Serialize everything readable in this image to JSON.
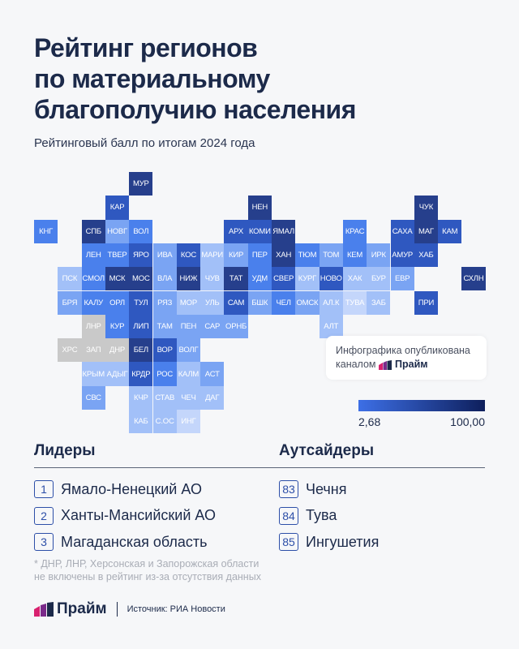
{
  "title_lines": [
    "Рейтинг регионов",
    "по материальному",
    "благополучию населения"
  ],
  "subtitle": "Рейтинговый балл по итогам 2024 года",
  "colors": {
    "levels": [
      "#c4d6fb",
      "#a2c0f8",
      "#7aa4f3",
      "#4a80ec",
      "#2f58c0",
      "#263f8c"
    ],
    "excluded": "#c9c9c9",
    "accent": "#2d4fa8"
  },
  "tiles": [
    {
      "code": "МУР",
      "level": 5
    },
    {
      "code": "КАР",
      "level": 4
    },
    {
      "code": "НЕН",
      "level": 5
    },
    {
      "code": "ЧУК",
      "level": 5
    },
    {
      "code": "КНГ",
      "level": 3
    },
    {
      "code": "СПБ",
      "level": 5
    },
    {
      "code": "НОВГ",
      "level": 2
    },
    {
      "code": "ВОЛ",
      "level": 3
    },
    {
      "code": "АРХ",
      "level": 4
    },
    {
      "code": "КОМИ",
      "level": 4
    },
    {
      "code": "ЯМАЛ",
      "level": 5
    },
    {
      "code": "КРАС",
      "level": 3
    },
    {
      "code": "САХА",
      "level": 4
    },
    {
      "code": "МАГ",
      "level": 5
    },
    {
      "code": "КАМ",
      "level": 4
    },
    {
      "code": "ЛЕН",
      "level": 3
    },
    {
      "code": "ТВЕР",
      "level": 3
    },
    {
      "code": "ЯРО",
      "level": 4
    },
    {
      "code": "ИВА",
      "level": 2
    },
    {
      "code": "КОС",
      "level": 4
    },
    {
      "code": "МАРИ",
      "level": 1
    },
    {
      "code": "КИР",
      "level": 2
    },
    {
      "code": "ПЕР",
      "level": 3
    },
    {
      "code": "ХАН",
      "level": 5
    },
    {
      "code": "ТЮМ",
      "level": 3
    },
    {
      "code": "ТОМ",
      "level": 2
    },
    {
      "code": "КЕМ",
      "level": 3
    },
    {
      "code": "ИРК",
      "level": 2
    },
    {
      "code": "АМУР",
      "level": 4
    },
    {
      "code": "ХАБ",
      "level": 4
    },
    {
      "code": "ПСК",
      "level": 1
    },
    {
      "code": "СМОЛ",
      "level": 3
    },
    {
      "code": "МСК",
      "level": 5
    },
    {
      "code": "МОС",
      "level": 5
    },
    {
      "code": "ВЛА",
      "level": 2
    },
    {
      "code": "НИЖ",
      "level": 5
    },
    {
      "code": "ЧУВ",
      "level": 1
    },
    {
      "code": "ТАТ",
      "level": 5
    },
    {
      "code": "УДМ",
      "level": 3
    },
    {
      "code": "СВЕР",
      "level": 4
    },
    {
      "code": "КУРГ",
      "level": 1
    },
    {
      "code": "НОВО",
      "level": 4
    },
    {
      "code": "ХАК",
      "level": 1
    },
    {
      "code": "БУР",
      "level": 1
    },
    {
      "code": "ЕВР",
      "level": 2
    },
    {
      "code": "СХЛН",
      "level": 5
    },
    {
      "code": "БРЯ",
      "level": 2
    },
    {
      "code": "КАЛУ",
      "level": 3
    },
    {
      "code": "ОРЛ",
      "level": 3
    },
    {
      "code": "ТУЛ",
      "level": 4
    },
    {
      "code": "РЯЗ",
      "level": 2
    },
    {
      "code": "МОР",
      "level": 1
    },
    {
      "code": "УЛЬ",
      "level": 1
    },
    {
      "code": "САМ",
      "level": 4
    },
    {
      "code": "БШК",
      "level": 2
    },
    {
      "code": "ЧЕЛ",
      "level": 3
    },
    {
      "code": "ОМСК",
      "level": 2
    },
    {
      "code": "АЛ.К",
      "level": 1
    },
    {
      "code": "ТУВА",
      "level": 0
    },
    {
      "code": "ЗАБ",
      "level": 1
    },
    {
      "code": "ПРИ",
      "level": 4
    },
    {
      "code": "ЛНР",
      "level": -1
    },
    {
      "code": "КУР",
      "level": 3
    },
    {
      "code": "ЛИП",
      "level": 4
    },
    {
      "code": "ТАМ",
      "level": 2
    },
    {
      "code": "ПЕН",
      "level": 2
    },
    {
      "code": "САР",
      "level": 2
    },
    {
      "code": "ОРНБ",
      "level": 2
    },
    {
      "code": "АЛТ",
      "level": 1
    },
    {
      "code": "ХРС",
      "level": -1
    },
    {
      "code": "ЗАП",
      "level": -1
    },
    {
      "code": "ДНР",
      "level": -1
    },
    {
      "code": "БЕЛ",
      "level": 5
    },
    {
      "code": "ВОР",
      "level": 4
    },
    {
      "code": "ВОЛГ",
      "level": 2
    },
    {
      "code": "КРЫМ",
      "level": 1
    },
    {
      "code": "АДЫГ",
      "level": 1
    },
    {
      "code": "КРДР",
      "level": 4
    },
    {
      "code": "РОС",
      "level": 3
    },
    {
      "code": "КАЛМ",
      "level": 1
    },
    {
      "code": "АСТ",
      "level": 2
    },
    {
      "code": "СВС",
      "level": 2
    },
    {
      "code": "КЧР",
      "level": 1
    },
    {
      "code": "СТАВ",
      "level": 1
    },
    {
      "code": "ЧЕЧ",
      "level": 1
    },
    {
      "code": "ДАГ",
      "level": 1
    },
    {
      "code": "КАБ",
      "level": 1
    },
    {
      "code": "С.ОС",
      "level": 1
    },
    {
      "code": "ИНГ",
      "level": 0
    }
  ],
  "info": {
    "text": "Инфографика опубликована",
    "text2": "каналом",
    "brand": "Прайм"
  },
  "legend": {
    "min": "2,68",
    "max": "100,00"
  },
  "leaders": {
    "heading": "Лидеры",
    "items": [
      {
        "rank": "1",
        "name": "Ямало-Ненецкий АО"
      },
      {
        "rank": "2",
        "name": "Ханты-Мансийский АО"
      },
      {
        "rank": "3",
        "name": "Магаданская область"
      }
    ]
  },
  "outsiders": {
    "heading": "Аутсайдеры",
    "items": [
      {
        "rank": "83",
        "name": "Чечня"
      },
      {
        "rank": "84",
        "name": "Тува"
      },
      {
        "rank": "85",
        "name": "Ингушетия"
      }
    ]
  },
  "note_lines": [
    "* ДНР, ЛНР, Херсонская и Запорожская области",
    "не включены в рейтинг из-за отсутствия данных"
  ],
  "footer": {
    "brand": "Прайм",
    "source": "Источник: РИА Новости"
  }
}
